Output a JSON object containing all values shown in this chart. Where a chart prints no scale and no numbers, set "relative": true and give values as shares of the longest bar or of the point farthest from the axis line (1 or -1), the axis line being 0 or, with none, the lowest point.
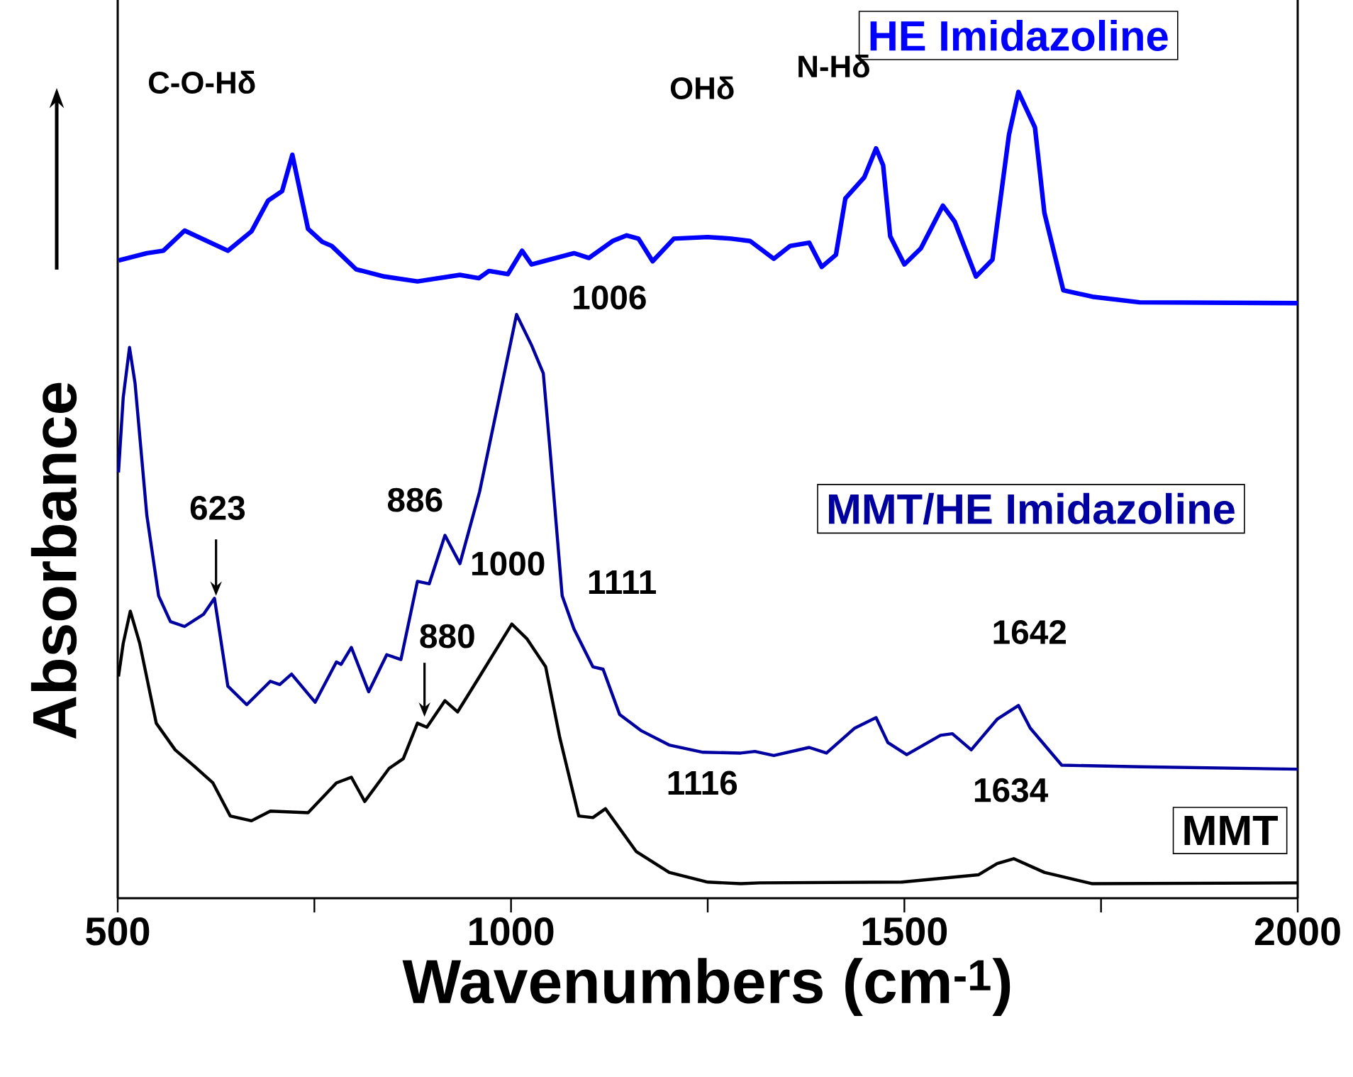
{
  "chart_data": {
    "type": "line",
    "relative": true,
    "xlabel": "Wavenumbers (cm$^{-1}$)",
    "ylabel": "Absorbance",
    "xlim": [
      500,
      2000
    ],
    "xticks": [
      500,
      1000,
      1500,
      2000
    ],
    "series": [
      {
        "name": "HE Imidazoline",
        "color": "#0000ff",
        "x": [
          501,
          537,
          558,
          585,
          640,
          670,
          691,
          709,
          722,
          742,
          760,
          772,
          803,
          839,
          881,
          935,
          959,
          972,
          996,
          1014,
          1026,
          1080,
          1099,
          1129,
          1147,
          1162,
          1180,
          1207,
          1250,
          1280,
          1304,
          1334,
          1355,
          1379,
          1395,
          1413,
          1425,
          1449,
          1464,
          1473,
          1482,
          1500,
          1521,
          1549,
          1564,
          1591,
          1612,
          1633,
          1645,
          1666,
          1678,
          1702,
          1739,
          1799,
          2000
        ],
        "values": [
          0.791,
          0.8,
          0.803,
          0.828,
          0.803,
          0.827,
          0.865,
          0.877,
          0.922,
          0.83,
          0.814,
          0.809,
          0.78,
          0.771,
          0.765,
          0.773,
          0.769,
          0.778,
          0.774,
          0.803,
          0.786,
          0.8,
          0.794,
          0.815,
          0.822,
          0.818,
          0.79,
          0.818,
          0.82,
          0.818,
          0.815,
          0.793,
          0.809,
          0.813,
          0.783,
          0.798,
          0.868,
          0.894,
          0.93,
          0.909,
          0.821,
          0.786,
          0.806,
          0.859,
          0.839,
          0.771,
          0.792,
          0.947,
          1.0,
          0.956,
          0.85,
          0.754,
          0.746,
          0.739,
          0.738
        ]
      },
      {
        "name": "MMT/HE Imidazoline",
        "color": "#0000a0",
        "x": [
          501,
          507,
          515,
          522,
          537,
          552,
          567,
          585,
          609,
          623,
          640,
          664,
          694,
          706,
          721,
          751,
          778,
          784,
          797,
          819,
          842,
          860,
          881,
          896,
          916,
          935,
          960,
          984,
          1007,
          1026,
          1041,
          1050,
          1065,
          1080,
          1104,
          1117,
          1138,
          1165,
          1201,
          1244,
          1292,
          1310,
          1334,
          1379,
          1401,
          1437,
          1464,
          1479,
          1503,
          1546,
          1561,
          1585,
          1618,
          1645,
          1660,
          1700,
          1799,
          2000
        ],
        "values": [
          0.528,
          0.621,
          0.683,
          0.639,
          0.475,
          0.375,
          0.343,
          0.337,
          0.352,
          0.372,
          0.263,
          0.24,
          0.269,
          0.265,
          0.278,
          0.243,
          0.293,
          0.29,
          0.311,
          0.256,
          0.302,
          0.296,
          0.393,
          0.39,
          0.45,
          0.415,
          0.504,
          0.616,
          0.724,
          0.686,
          0.651,
          0.551,
          0.375,
          0.334,
          0.287,
          0.284,
          0.228,
          0.208,
          0.19,
          0.181,
          0.18,
          0.182,
          0.177,
          0.187,
          0.18,
          0.211,
          0.224,
          0.193,
          0.178,
          0.202,
          0.204,
          0.184,
          0.222,
          0.239,
          0.211,
          0.165,
          0.163,
          0.16
        ]
      },
      {
        "name": "MMT",
        "color": "#000000",
        "x": [
          501,
          507,
          516,
          528,
          549,
          573,
          597,
          621,
          643,
          670,
          694,
          742,
          778,
          797,
          814,
          845,
          863,
          881,
          893,
          916,
          932,
          960,
          1001,
          1020,
          1044,
          1062,
          1086,
          1104,
          1120,
          1159,
          1201,
          1250,
          1292,
          1316,
          1497,
          1594,
          1618,
          1639,
          1678,
          1739,
          2000
        ],
        "values": [
          0.275,
          0.316,
          0.356,
          0.316,
          0.217,
          0.184,
          0.164,
          0.143,
          0.102,
          0.096,
          0.108,
          0.106,
          0.143,
          0.15,
          0.12,
          0.161,
          0.173,
          0.217,
          0.212,
          0.245,
          0.231,
          0.275,
          0.34,
          0.322,
          0.287,
          0.199,
          0.102,
          0.1,
          0.111,
          0.058,
          0.032,
          0.02,
          0.018,
          0.019,
          0.02,
          0.029,
          0.043,
          0.049,
          0.032,
          0.018,
          0.019
        ]
      }
    ],
    "annotations": [
      "C-O-Hδ",
      "OHδ",
      "N-Hδ",
      "1006",
      "623",
      "886",
      "1000",
      "1111",
      "880",
      "1116",
      "1642",
      "1634"
    ]
  }
}
